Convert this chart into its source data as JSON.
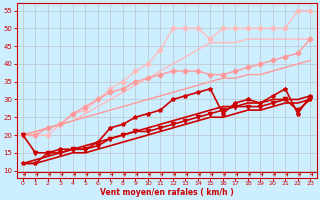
{
  "background_color": "#cceeff",
  "grid_color": "#bbbbbb",
  "xlabel": "Vent moyen/en rafales ( km/h )",
  "xlabel_color": "#cc0000",
  "tick_color": "#cc0000",
  "axis_color": "#cc0000",
  "xlim": [
    -0.5,
    23.5
  ],
  "ylim": [
    8,
    57
  ],
  "yticks": [
    10,
    15,
    20,
    25,
    30,
    35,
    40,
    45,
    50,
    55
  ],
  "xticks": [
    0,
    1,
    2,
    3,
    4,
    5,
    6,
    7,
    8,
    9,
    10,
    11,
    12,
    13,
    14,
    15,
    16,
    17,
    18,
    19,
    20,
    21,
    22,
    23
  ],
  "series": [
    {
      "x": [
        0,
        1,
        2,
        3,
        4,
        5,
        6,
        7,
        8,
        9,
        10,
        11,
        12,
        13,
        14,
        15,
        16,
        17,
        18,
        19,
        20,
        21,
        22,
        23
      ],
      "y": [
        20,
        20,
        20,
        23,
        26,
        27,
        30,
        33,
        35,
        38,
        40,
        44,
        50,
        50,
        50,
        47,
        50,
        50,
        50,
        50,
        50,
        50,
        55,
        55
      ],
      "color": "#ffbbbb",
      "marker": "D",
      "markersize": 2.5,
      "linewidth": 1.0
    },
    {
      "x": [
        0,
        1,
        2,
        3,
        4,
        5,
        6,
        7,
        8,
        9,
        10,
        11,
        12,
        13,
        14,
        15,
        16,
        17,
        18,
        19,
        20,
        21,
        22,
        23
      ],
      "y": [
        20,
        21,
        22,
        23,
        24,
        26,
        28,
        30,
        32,
        34,
        36,
        38,
        40,
        42,
        44,
        46,
        46,
        46,
        47,
        47,
        47,
        47,
        47,
        47
      ],
      "color": "#ffbbbb",
      "marker": null,
      "markersize": 0,
      "linewidth": 1.0
    },
    {
      "x": [
        0,
        1,
        2,
        3,
        4,
        5,
        6,
        7,
        8,
        9,
        10,
        11,
        12,
        13,
        14,
        15,
        16,
        17,
        18,
        19,
        20,
        21,
        22,
        23
      ],
      "y": [
        20,
        20,
        22,
        23,
        26,
        28,
        30,
        32,
        33,
        35,
        36,
        37,
        38,
        38,
        38,
        37,
        37,
        38,
        39,
        40,
        41,
        42,
        43,
        47
      ],
      "color": "#ff9999",
      "marker": "D",
      "markersize": 2.5,
      "linewidth": 1.0
    },
    {
      "x": [
        0,
        1,
        2,
        3,
        4,
        5,
        6,
        7,
        8,
        9,
        10,
        11,
        12,
        13,
        14,
        15,
        16,
        17,
        18,
        19,
        20,
        21,
        22,
        23
      ],
      "y": [
        20,
        21,
        22,
        23,
        24,
        25,
        26,
        27,
        28,
        29,
        30,
        31,
        32,
        33,
        34,
        35,
        36,
        36,
        37,
        37,
        38,
        39,
        40,
        41
      ],
      "color": "#ff9999",
      "marker": null,
      "markersize": 0,
      "linewidth": 1.0
    },
    {
      "x": [
        0,
        1,
        2,
        3,
        4,
        5,
        6,
        7,
        8,
        9,
        10,
        11,
        12,
        13,
        14,
        15,
        16,
        17,
        18,
        19,
        20,
        21,
        22,
        23
      ],
      "y": [
        12,
        12,
        15,
        16,
        16,
        16,
        18,
        22,
        23,
        25,
        26,
        27,
        30,
        31,
        32,
        33,
        26,
        29,
        30,
        29,
        31,
        33,
        26,
        31
      ],
      "color": "#cc0000",
      "marker": "*",
      "markersize": 3,
      "linewidth": 1.2
    },
    {
      "x": [
        0,
        1,
        2,
        3,
        4,
        5,
        6,
        7,
        8,
        9,
        10,
        11,
        12,
        13,
        14,
        15,
        16,
        17,
        18,
        19,
        20,
        21,
        22,
        23
      ],
      "y": [
        20,
        15,
        15,
        15,
        16,
        16,
        17,
        19,
        20,
        21,
        21,
        22,
        23,
        24,
        25,
        26,
        27,
        28,
        28,
        28,
        29,
        30,
        27,
        30
      ],
      "color": "#cc0000",
      "marker": "v",
      "markersize": 3,
      "linewidth": 1.2
    },
    {
      "x": [
        0,
        1,
        2,
        3,
        4,
        5,
        6,
        7,
        8,
        9,
        10,
        11,
        12,
        13,
        14,
        15,
        16,
        17,
        18,
        19,
        20,
        21,
        22,
        23
      ],
      "y": [
        12,
        12,
        13,
        14,
        15,
        15,
        16,
        17,
        18,
        19,
        20,
        21,
        22,
        23,
        24,
        25,
        25,
        26,
        27,
        27,
        28,
        29,
        29,
        30
      ],
      "color": "#cc0000",
      "marker": null,
      "markersize": 0,
      "linewidth": 1.2
    },
    {
      "x": [
        0,
        1,
        2,
        3,
        4,
        5,
        6,
        7,
        8,
        9,
        10,
        11,
        12,
        13,
        14,
        15,
        16,
        17,
        18,
        19,
        20,
        21,
        22,
        23
      ],
      "y": [
        12,
        13,
        14,
        15,
        16,
        17,
        18,
        19,
        20,
        21,
        22,
        23,
        24,
        25,
        26,
        27,
        28,
        28,
        29,
        29,
        30,
        30,
        30,
        31
      ],
      "color": "#cc0000",
      "marker": null,
      "markersize": 0,
      "linewidth": 1.2
    }
  ]
}
